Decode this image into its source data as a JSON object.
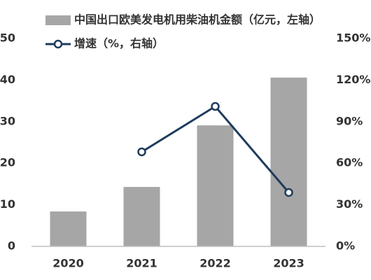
{
  "chart_data": {
    "type": "bar",
    "categories": [
      "2020",
      "2021",
      "2022",
      "2023"
    ],
    "series": [
      {
        "name": "中国出口欧美发电机用柴油机金额（亿元，左轴）",
        "type": "bar",
        "color": "#a6a6a6",
        "values": [
          8.4,
          14.3,
          29.1,
          40.6
        ]
      },
      {
        "name": "增速（%，右轴）",
        "type": "line",
        "axis": "y2",
        "color": "#1f3b5c",
        "values": [
          null,
          68.2,
          101,
          38.9
        ]
      }
    ],
    "ylim": [
      0,
      50
    ],
    "yticks": [
      0,
      10,
      20,
      30,
      40,
      50
    ],
    "y2lim": [
      0,
      150
    ],
    "y2ticks": [
      {
        "value": 0,
        "label": "0%"
      },
      {
        "value": 30,
        "label": "30%"
      },
      {
        "value": 60,
        "label": "60%"
      },
      {
        "value": 90,
        "label": "90%"
      },
      {
        "value": 120,
        "label": "120%"
      },
      {
        "value": 150,
        "label": "150%"
      }
    ]
  }
}
